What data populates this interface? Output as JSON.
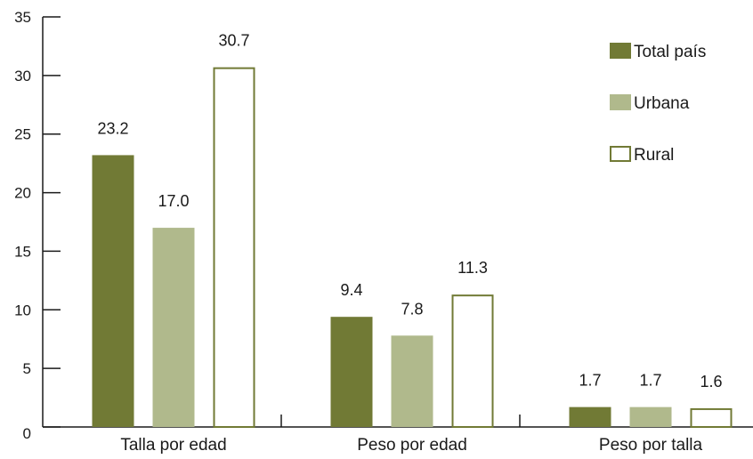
{
  "chart_data": {
    "type": "bar",
    "categories": [
      "Talla por edad",
      "Peso por edad",
      "Peso por talla"
    ],
    "series": [
      {
        "name": "Total país",
        "values": [
          23.2,
          9.4,
          1.7
        ],
        "labels": [
          "23.2",
          "9.4",
          "1.7"
        ],
        "fill": "#717a35",
        "stroke": "#717a35"
      },
      {
        "name": "Urbana",
        "values": [
          17.0,
          7.8,
          1.7
        ],
        "labels": [
          "17.0",
          "7.8",
          "1.7"
        ],
        "fill": "#b0b98c",
        "stroke": "#b0b98c"
      },
      {
        "name": "Rural",
        "values": [
          30.7,
          11.3,
          1.6
        ],
        "labels": [
          "30.7",
          "11.3",
          "1.6"
        ],
        "fill": "#ffffff",
        "stroke": "#717a35"
      }
    ],
    "ylim": [
      0,
      35
    ],
    "yticks": [
      "0",
      "5",
      "10",
      "15",
      "20",
      "25",
      "30",
      "35"
    ],
    "grid": false,
    "legend_position": "top-right",
    "title": "",
    "xlabel": "",
    "ylabel": ""
  }
}
